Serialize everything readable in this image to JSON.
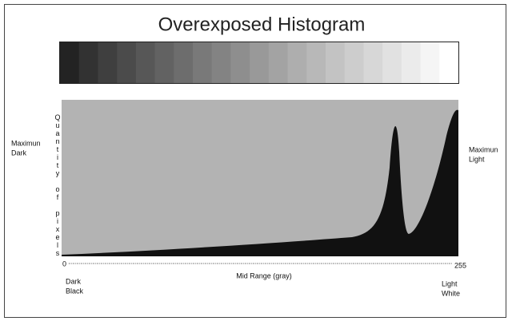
{
  "title": "Overexposed Histogram",
  "y_axis_label": "Quantity of pixels",
  "left_label": [
    "Maximun",
    "Dark"
  ],
  "right_label": [
    "Maximun",
    "Light"
  ],
  "x_start": "0",
  "x_end": "255",
  "x_axis_label": "Mid Range (gray)",
  "left_bottom_label": [
    "Dark",
    "Black"
  ],
  "right_bottom_label": [
    "Light",
    "White"
  ]
}
